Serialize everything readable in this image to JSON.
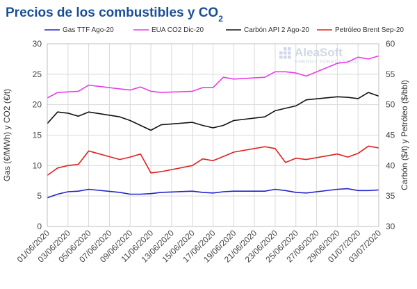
{
  "chart_data": {
    "type": "line",
    "title": "Precios de los combustibles y CO",
    "title_subscript": "2",
    "ylabel_left": "Gas (€/MWh) y CO2 (€/t)",
    "ylabel_right": "Carbón ($/t) y Petróleo ($/bbl)",
    "ylim_left": [
      0,
      30
    ],
    "ylim_right": [
      30,
      60
    ],
    "yticks_left": [
      "0",
      "5",
      "10",
      "15",
      "20",
      "25",
      "30"
    ],
    "yticks_right": [
      "30",
      "35",
      "40",
      "45",
      "50",
      "55",
      "60"
    ],
    "grid": true,
    "legend_position": "top",
    "x": [
      "01/06/2020",
      "02/06/2020",
      "03/06/2020",
      "04/06/2020",
      "05/06/2020",
      "08/06/2020",
      "09/06/2020",
      "10/06/2020",
      "11/06/2020",
      "12/06/2020",
      "15/06/2020",
      "16/06/2020",
      "17/06/2020",
      "18/06/2020",
      "19/06/2020",
      "22/06/2020",
      "23/06/2020",
      "24/06/2020",
      "25/06/2020",
      "26/06/2020",
      "29/06/2020",
      "30/06/2020",
      "01/07/2020",
      "02/07/2020",
      "03/07/2020"
    ],
    "x_index": [
      0,
      1,
      2,
      3,
      4,
      7,
      8,
      9,
      10,
      11,
      14,
      15,
      16,
      17,
      18,
      21,
      22,
      23,
      24,
      25,
      28,
      29,
      30,
      31,
      32
    ],
    "xticks": [
      "01/06/2020",
      "03/06/2020",
      "05/06/2020",
      "07/06/2020",
      "09/06/2020",
      "11/06/2020",
      "13/06/2020",
      "15/06/2020",
      "17/06/2020",
      "19/06/2020",
      "21/06/2020",
      "23/06/2020",
      "25/06/2020",
      "27/06/2020",
      "29/06/2020",
      "01/07/2020",
      "03/07/2020"
    ],
    "xticks_index": [
      0,
      2,
      4,
      6,
      8,
      10,
      12,
      14,
      16,
      18,
      20,
      22,
      24,
      26,
      28,
      30,
      32
    ],
    "series": [
      {
        "name": "Gas TTF Ago-20",
        "color": "#2222cc",
        "axis": "left",
        "values": [
          4.7,
          5.3,
          5.7,
          5.8,
          6.1,
          5.6,
          5.3,
          5.3,
          5.4,
          5.6,
          5.8,
          5.6,
          5.5,
          5.7,
          5.8,
          5.8,
          6.1,
          5.9,
          5.6,
          5.5,
          6.1,
          6.2,
          5.9,
          5.9,
          6.0
        ]
      },
      {
        "name": "EUA CO2 Dic-20",
        "color": "#e83ce8",
        "axis": "left",
        "values": [
          21.1,
          22.0,
          22.1,
          22.2,
          23.2,
          22.6,
          22.4,
          22.9,
          22.2,
          22.0,
          22.2,
          22.8,
          22.8,
          24.5,
          24.2,
          24.5,
          25.4,
          25.4,
          25.2,
          24.7,
          26.8,
          27.0,
          27.8,
          27.5,
          28.0
        ]
      },
      {
        "name": "Carbón API 2 Ago-20",
        "color": "#111111",
        "axis": "right",
        "values": [
          46.9,
          48.8,
          48.6,
          48.1,
          48.8,
          48.0,
          47.4,
          46.6,
          45.8,
          46.7,
          47.1,
          46.6,
          46.2,
          46.6,
          47.4,
          48.0,
          49.0,
          49.4,
          49.8,
          50.8,
          51.3,
          51.2,
          51.0,
          52.0,
          51.4
        ]
      },
      {
        "name": "Petróleo Brent Sep-20",
        "color": "#e02020",
        "axis": "right",
        "values": [
          38.4,
          39.6,
          40.0,
          40.2,
          42.4,
          41.0,
          41.4,
          41.9,
          38.8,
          39.0,
          40.0,
          41.1,
          40.8,
          41.5,
          42.2,
          43.1,
          42.8,
          40.5,
          41.2,
          41.0,
          41.9,
          41.4,
          42.0,
          43.2,
          42.9
        ]
      }
    ]
  },
  "logo": {
    "name": "AleaSoft",
    "tagline": "ENERGY FORECASTING"
  }
}
